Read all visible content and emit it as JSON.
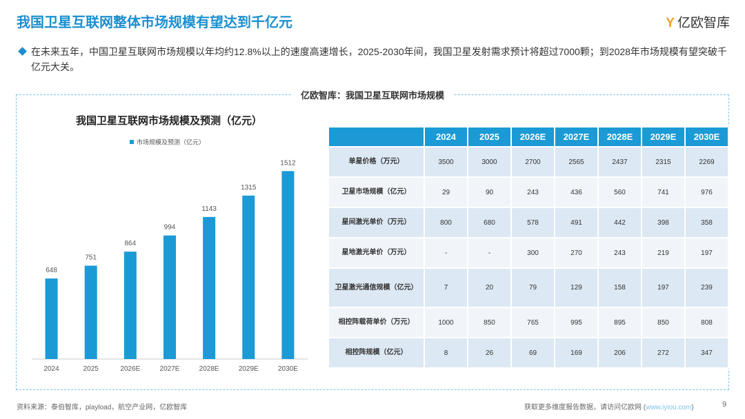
{
  "header": {
    "title": "我国卫星互联网整体市场规模有望达到千亿元",
    "brand": "亿欧智库"
  },
  "summary": "在未来五年，中国卫星互联网市场规模以年均约12.8%以上的速度高速增长，2025-2030年间，我国卫星发射需求预计将超过7000颗；到2028年市场规模有望突破千亿元大关。",
  "panel_title": "亿欧智库：我国卫星互联网市场规模",
  "chart_data": {
    "type": "bar",
    "title": "我国卫星互联网市场规模及预测（亿元）",
    "categories": [
      "2024",
      "2025",
      "2026E",
      "2027E",
      "2028E",
      "2029E",
      "2030E"
    ],
    "series": [
      {
        "name": "市场规模及预测（亿元）",
        "color": "#1b9ad6",
        "values": [
          648,
          751,
          864,
          994,
          1143,
          1315,
          1512
        ]
      }
    ],
    "grid": false,
    "legend": "top"
  },
  "table": {
    "columns": [
      "2024",
      "2025",
      "2026E",
      "2027E",
      "2028E",
      "2029E",
      "2030E"
    ],
    "rows": [
      {
        "label": "单星价格（万元）",
        "cells": [
          3500,
          3000,
          2700,
          2565,
          2437,
          2315,
          2269
        ]
      },
      {
        "label": "卫星市场规模（亿元）",
        "cells": [
          29,
          90,
          243,
          436,
          560,
          741,
          976
        ]
      },
      {
        "label": "星间激光单价（万元）",
        "cells": [
          800,
          680,
          578,
          491,
          442,
          398,
          358
        ]
      },
      {
        "label": "星地激光单价（万元）",
        "cells": [
          "-",
          "-",
          300,
          270,
          243,
          219,
          197
        ]
      },
      {
        "label": "卫星激光通信规模（亿元）",
        "cells": [
          7,
          20,
          79,
          129,
          158,
          197,
          239
        ]
      },
      {
        "label": "相控阵载荷单价（万元）",
        "cells": [
          1000,
          850,
          765,
          995,
          895,
          850,
          808
        ]
      },
      {
        "label": "相控阵规模（亿元）",
        "cells": [
          8,
          26,
          69,
          169,
          206,
          272,
          347
        ]
      }
    ]
  },
  "footer": {
    "source": "资料来源：泰伯智库，playload，航空产业网，亿欧智库",
    "more_prefix": "获取更多维度报告数据，请访问亿欧网 (",
    "link": "www.iyiou.com",
    "more_suffix": ")",
    "page": "9"
  }
}
